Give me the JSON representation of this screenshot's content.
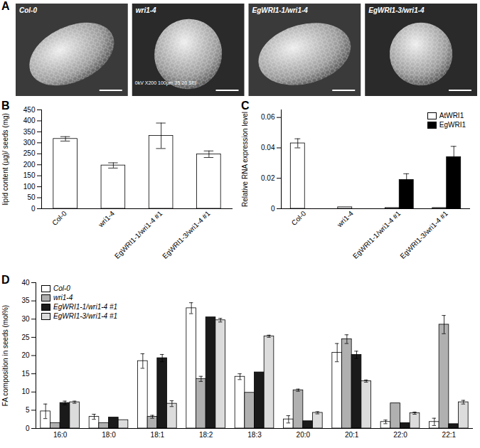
{
  "chart_data": [
    {
      "panel": "A",
      "type": "image",
      "labels": [
        "Col-0",
        "wri1-4",
        "EgWRI1-1/wri1-4",
        "EgWRI1-3/wri1-4"
      ],
      "sem_caption": "0kV X200 100µm 35 20 SEI"
    },
    {
      "panel": "B",
      "type": "bar",
      "categories": [
        "Col-0",
        "wri1-4",
        "EgWRI1-1/wri1-4 #1",
        "EgWRI1-3/wri1-4 #1"
      ],
      "values": [
        318,
        197,
        332,
        248
      ],
      "errors": [
        10,
        12,
        58,
        15
      ],
      "color": "#ffffff",
      "ylabel": "lipid content (µg)/ seeds (mg)",
      "ylim": [
        0,
        450
      ],
      "yticks": [
        0,
        50,
        100,
        150,
        200,
        250,
        300,
        350,
        400,
        450
      ]
    },
    {
      "panel": "C",
      "type": "bar",
      "categories": [
        "Col-0",
        "wri1-4",
        "EgWRI1-1/wri1-4 #1",
        "EgWRI1-3/wri1-4 #1"
      ],
      "series": [
        {
          "name": "AtWRI1",
          "color": "#ffffff",
          "values": [
            0.043,
            0.001,
            0.0005,
            0.0005
          ],
          "errors": [
            0.003,
            null,
            null,
            null
          ]
        },
        {
          "name": "EgWRI1",
          "color": "#000000",
          "values": [
            0,
            0,
            0.019,
            0.034
          ],
          "errors": [
            null,
            null,
            0.004,
            0.007
          ]
        }
      ],
      "ylabel": "Relative RNA expression level",
      "ylim": [
        0,
        0.065
      ],
      "yticks": [
        0,
        0.02,
        0.04,
        0.06
      ],
      "legend": "top-right"
    },
    {
      "panel": "D",
      "type": "bar",
      "categories": [
        "16:0",
        "18:0",
        "18:1",
        "18:2",
        "18:3",
        "20:0",
        "20:1",
        "22:0",
        "22:1"
      ],
      "series": [
        {
          "name": "Col-0",
          "color": "#ffffff",
          "values": [
            4.7,
            3.2,
            18.5,
            33,
            14.2,
            2.5,
            20.8,
            1.8,
            1.8
          ],
          "errors": [
            2,
            0.7,
            2,
            1.5,
            0.8,
            1,
            2.5,
            0.5,
            1
          ]
        },
        {
          "name": "wri1-4",
          "color": "#b0b0b0",
          "values": [
            1.5,
            1.5,
            3.2,
            13.6,
            9.8,
            10.5,
            24.5,
            6.9,
            28.5
          ],
          "errors": [
            null,
            null,
            0.4,
            0.7,
            null,
            0.3,
            1.2,
            null,
            2.5
          ]
        },
        {
          "name": "EgWRI1-1/wri1-4 #1",
          "color": "#1a1a1a",
          "values": [
            7,
            3,
            19.3,
            30.5,
            15.4,
            2,
            20.2,
            1.5,
            1.2
          ],
          "errors": [
            0.5,
            null,
            1,
            null,
            null,
            null,
            1,
            null,
            null
          ]
        },
        {
          "name": "EgWRI1-3/wri1-4 #1",
          "color": "#dcdcdc",
          "values": [
            7.2,
            2.3,
            6.8,
            29.7,
            25.3,
            4.3,
            13,
            4.2,
            7.2
          ],
          "errors": [
            0.3,
            null,
            0.8,
            0.5,
            0.3,
            0.3,
            0.3,
            0.3,
            0.5
          ]
        }
      ],
      "ylabel": "FA composition in seeds (mol%)",
      "ylim": [
        0,
        40
      ],
      "yticks": [
        0,
        5,
        10,
        15,
        20,
        25,
        30,
        35,
        40
      ],
      "legend": "top-left"
    }
  ]
}
